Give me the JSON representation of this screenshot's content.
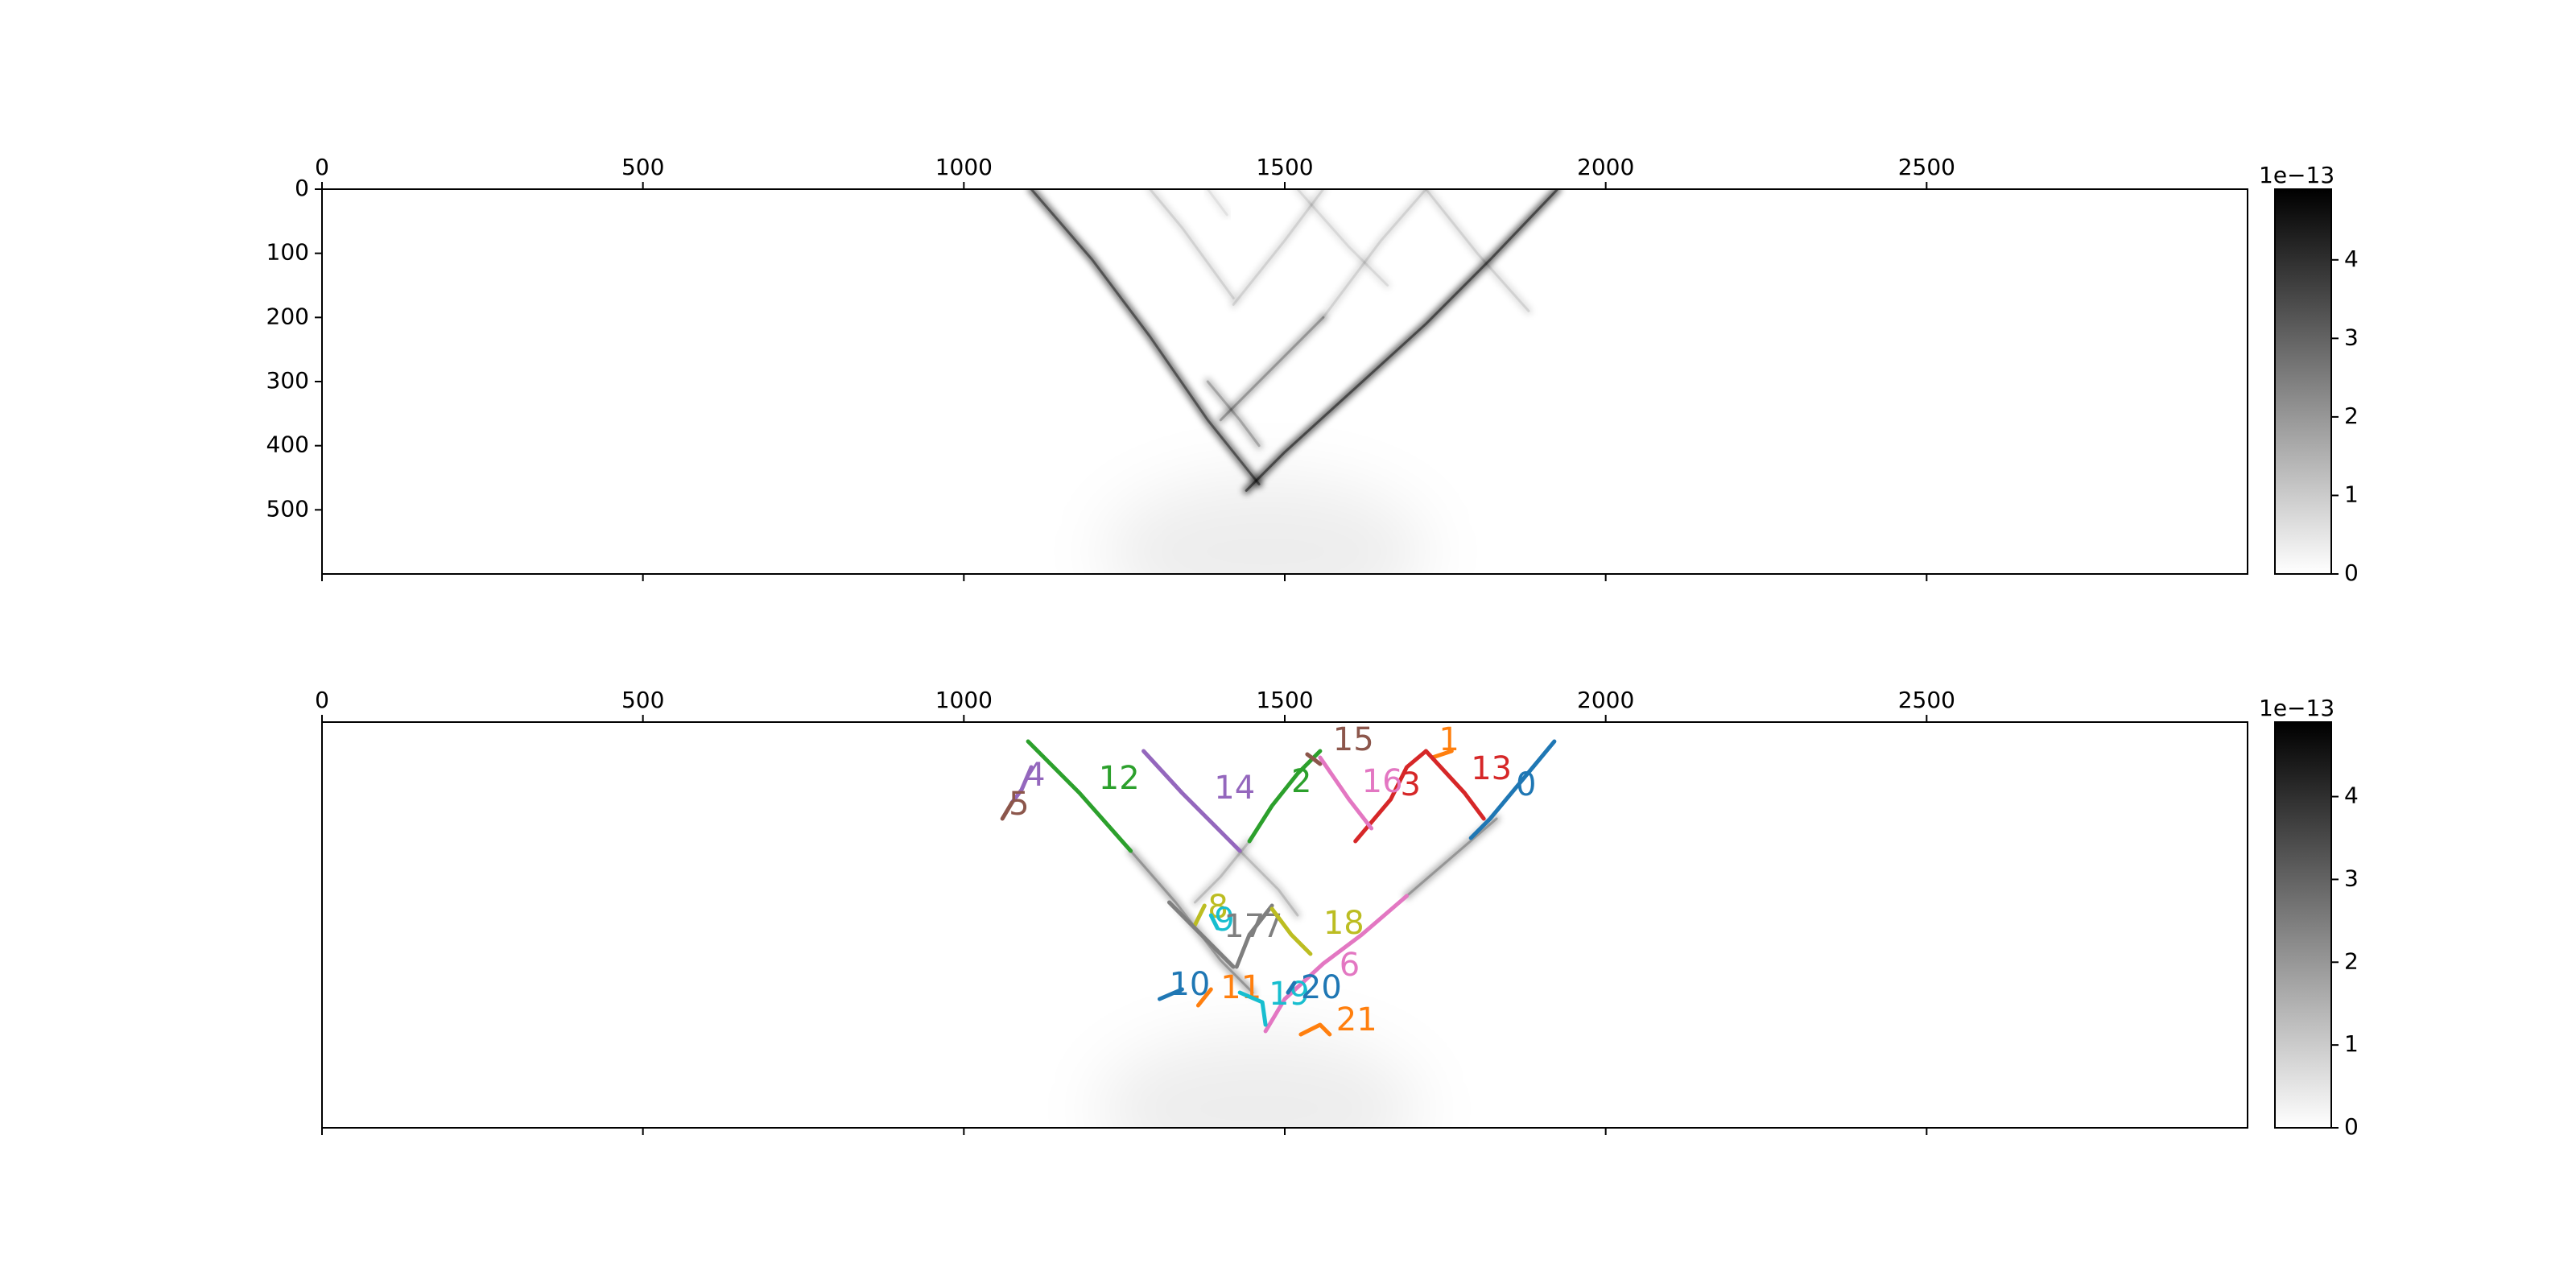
{
  "chart_data": [
    {
      "type": "heatmap",
      "panel": "top",
      "title": "",
      "xlabel": "",
      "ylabel": "",
      "xlim": [
        0,
        3000
      ],
      "ylim": [
        600,
        0
      ],
      "xticks": [
        0,
        500,
        1000,
        1500,
        2000,
        2500
      ],
      "xtick_position": "top",
      "yticks": [
        0,
        100,
        200,
        300,
        400,
        500
      ],
      "colormap": "gray_r",
      "colorbar": {
        "range": [
          0,
          4.9
        ],
        "ticks": [
          0,
          1,
          2,
          3,
          4
        ],
        "exponent_label": "1e−13"
      },
      "ridges": [
        {
          "points": [
            [
              1105,
              0
            ],
            [
              1200,
              110
            ],
            [
              1290,
              230
            ],
            [
              1380,
              360
            ],
            [
              1460,
              460
            ]
          ],
          "intensity": 0.55
        },
        {
          "points": [
            [
              1925,
              0
            ],
            [
              1820,
              110
            ],
            [
              1720,
              210
            ],
            [
              1610,
              310
            ],
            [
              1500,
              410
            ],
            [
              1440,
              470
            ]
          ],
          "intensity": 0.6
        },
        {
          "points": [
            [
              1290,
              0
            ],
            [
              1340,
              60
            ],
            [
              1420,
              170
            ]
          ],
          "intensity": 0.12
        },
        {
          "points": [
            [
              1560,
              0
            ],
            [
              1500,
              80
            ],
            [
              1420,
              180
            ]
          ],
          "intensity": 0.12
        },
        {
          "points": [
            [
              1520,
              0
            ],
            [
              1600,
              90
            ],
            [
              1660,
              150
            ]
          ],
          "intensity": 0.1
        },
        {
          "points": [
            [
              1720,
              0
            ],
            [
              1650,
              80
            ],
            [
              1560,
              200
            ]
          ],
          "intensity": 0.12
        },
        {
          "points": [
            [
              1720,
              0
            ],
            [
              1800,
              100
            ],
            [
              1880,
              190
            ]
          ],
          "intensity": 0.12
        },
        {
          "points": [
            [
              1560,
              200
            ],
            [
              1460,
              300
            ],
            [
              1400,
              360
            ]
          ],
          "intensity": 0.3
        },
        {
          "points": [
            [
              1380,
              300
            ],
            [
              1430,
              360
            ],
            [
              1460,
              400
            ]
          ],
          "intensity": 0.25
        },
        {
          "points": [
            [
              1380,
              0
            ],
            [
              1410,
              40
            ]
          ],
          "intensity": 0.08
        }
      ],
      "horizontal_band": {
        "y": 235,
        "x_range": [
          1000,
          2000
        ],
        "intensity": 0.06
      },
      "focus": {
        "x": 1470,
        "y": 565,
        "intensity": 0.07
      }
    },
    {
      "type": "heatmap",
      "panel": "bottom",
      "title": "",
      "xlabel": "",
      "ylabel": "",
      "xlim": [
        0,
        3000
      ],
      "ylim": [
        630,
        0
      ],
      "xticks": [
        0,
        500,
        1000,
        1500,
        2000,
        2500
      ],
      "xtick_position": "top",
      "colormap": "gray_r",
      "colorbar": {
        "range": [
          0,
          4.9
        ],
        "ticks": [
          0,
          1,
          2,
          3,
          4
        ],
        "exponent_label": "1e−13"
      },
      "tracks": [
        {
          "id": "0",
          "color": "#1f77b4",
          "label_at": [
            1860,
            100
          ],
          "points": [
            [
              1920,
              30
            ],
            [
              1870,
              90
            ],
            [
              1820,
              150
            ],
            [
              1790,
              180
            ]
          ]
        },
        {
          "id": "1",
          "color": "#ff7f0e",
          "label_at": [
            1740,
            30
          ],
          "points": [
            [
              1730,
              55
            ],
            [
              1760,
              45
            ]
          ]
        },
        {
          "id": "2",
          "color": "#2ca02c",
          "label_at": [
            1510,
            95
          ],
          "points": [
            [
              1555,
              45
            ],
            [
              1520,
              80
            ],
            [
              1480,
              130
            ],
            [
              1445,
              185
            ]
          ]
        },
        {
          "id": "3",
          "color": "#d62728",
          "label_at": [
            1680,
            100
          ],
          "points": [
            [
              1720,
              45
            ],
            [
              1690,
              70
            ],
            [
              1665,
              120
            ],
            [
              1610,
              185
            ]
          ]
        },
        {
          "id": "4",
          "color": "#9467bd",
          "label_at": [
            1095,
            85
          ],
          "points": [
            [
              1105,
              70
            ],
            [
              1090,
              105
            ],
            [
              1075,
              125
            ]
          ]
        },
        {
          "id": "5",
          "color": "#8c564b",
          "label_at": [
            1070,
            130
          ],
          "points": [
            [
              1075,
              125
            ],
            [
              1060,
              150
            ]
          ]
        },
        {
          "id": "6",
          "color": "#e377c2",
          "label_at": [
            1585,
            380
          ],
          "points": [
            [
              1690,
              270
            ],
            [
              1620,
              330
            ],
            [
              1560,
              375
            ],
            [
              1500,
              430
            ],
            [
              1470,
              480
            ]
          ]
        },
        {
          "id": "7",
          "color": "#7f7f7f",
          "label_at": [
            1465,
            320
          ],
          "points": [
            [
              1480,
              285
            ],
            [
              1445,
              330
            ],
            [
              1425,
              380
            ]
          ]
        },
        {
          "id": "8",
          "color": "#bcbd22",
          "label_at": [
            1380,
            290
          ],
          "points": [
            [
              1360,
              315
            ],
            [
              1375,
              285
            ]
          ]
        },
        {
          "id": "9",
          "color": "#17becf",
          "label_at": [
            1390,
            310
          ],
          "points": [
            [
              1385,
              300
            ],
            [
              1395,
              320
            ]
          ]
        },
        {
          "id": "10",
          "color": "#1f77b4",
          "label_at": [
            1320,
            410
          ],
          "points": [
            [
              1305,
              430
            ],
            [
              1340,
              415
            ]
          ]
        },
        {
          "id": "11",
          "color": "#ff7f0e",
          "label_at": [
            1400,
            415
          ],
          "points": [
            [
              1365,
              440
            ],
            [
              1385,
              415
            ]
          ]
        },
        {
          "id": "12",
          "color": "#2ca02c",
          "label_at": [
            1210,
            90
          ],
          "points": [
            [
              1100,
              30
            ],
            [
              1180,
              110
            ],
            [
              1260,
              200
            ]
          ]
        },
        {
          "id": "13",
          "color": "#d62728",
          "label_at": [
            1790,
            75
          ],
          "points": [
            [
              1720,
              45
            ],
            [
              1780,
              110
            ],
            [
              1810,
              150
            ]
          ]
        },
        {
          "id": "14",
          "color": "#9467bd",
          "label_at": [
            1390,
            105
          ],
          "points": [
            [
              1280,
              45
            ],
            [
              1340,
              110
            ],
            [
              1430,
              200
            ]
          ]
        },
        {
          "id": "15",
          "color": "#8c564b",
          "label_at": [
            1575,
            30
          ],
          "points": [
            [
              1535,
              50
            ],
            [
              1555,
              65
            ]
          ]
        },
        {
          "id": "16",
          "color": "#e377c2",
          "label_at": [
            1620,
            95
          ],
          "points": [
            [
              1555,
              55
            ],
            [
              1600,
              120
            ],
            [
              1635,
              165
            ]
          ]
        },
        {
          "id": "17",
          "color": "#7f7f7f",
          "label_at": [
            1405,
            320
          ],
          "points": [
            [
              1320,
              280
            ],
            [
              1370,
              330
            ],
            [
              1420,
              380
            ]
          ]
        },
        {
          "id": "18",
          "color": "#bcbd22",
          "label_at": [
            1560,
            315
          ],
          "points": [
            [
              1480,
              290
            ],
            [
              1510,
              330
            ],
            [
              1540,
              360
            ]
          ]
        },
        {
          "id": "19",
          "color": "#17becf",
          "label_at": [
            1475,
            425
          ],
          "points": [
            [
              1430,
              420
            ],
            [
              1465,
              435
            ],
            [
              1470,
              470
            ]
          ]
        },
        {
          "id": "20",
          "color": "#1f77b4",
          "label_at": [
            1525,
            415
          ],
          "points": [
            [
              1505,
              420
            ],
            [
              1515,
              405
            ]
          ]
        },
        {
          "id": "21",
          "color": "#ff7f0e",
          "label_at": [
            1580,
            465
          ],
          "points": [
            [
              1525,
              485
            ],
            [
              1555,
              470
            ],
            [
              1570,
              485
            ]
          ]
        }
      ],
      "ridges": [
        {
          "points": [
            [
              1260,
              200
            ],
            [
              1330,
              280
            ],
            [
              1400,
              370
            ],
            [
              1450,
              420
            ]
          ],
          "intensity": 0.3
        },
        {
          "points": [
            [
              1690,
              270
            ],
            [
              1760,
              210
            ],
            [
              1830,
              150
            ]
          ],
          "intensity": 0.3
        },
        {
          "points": [
            [
              1445,
              185
            ],
            [
              1400,
              240
            ],
            [
              1360,
              280
            ]
          ],
          "intensity": 0.18
        },
        {
          "points": [
            [
              1430,
              200
            ],
            [
              1490,
              260
            ],
            [
              1520,
              300
            ]
          ],
          "intensity": 0.18
        }
      ],
      "horizontal_band": {
        "y": 265,
        "x_range": [
          1000,
          2000
        ],
        "intensity": 0.06
      },
      "focus": {
        "x": 1460,
        "y": 600,
        "intensity": 0.07
      }
    }
  ]
}
